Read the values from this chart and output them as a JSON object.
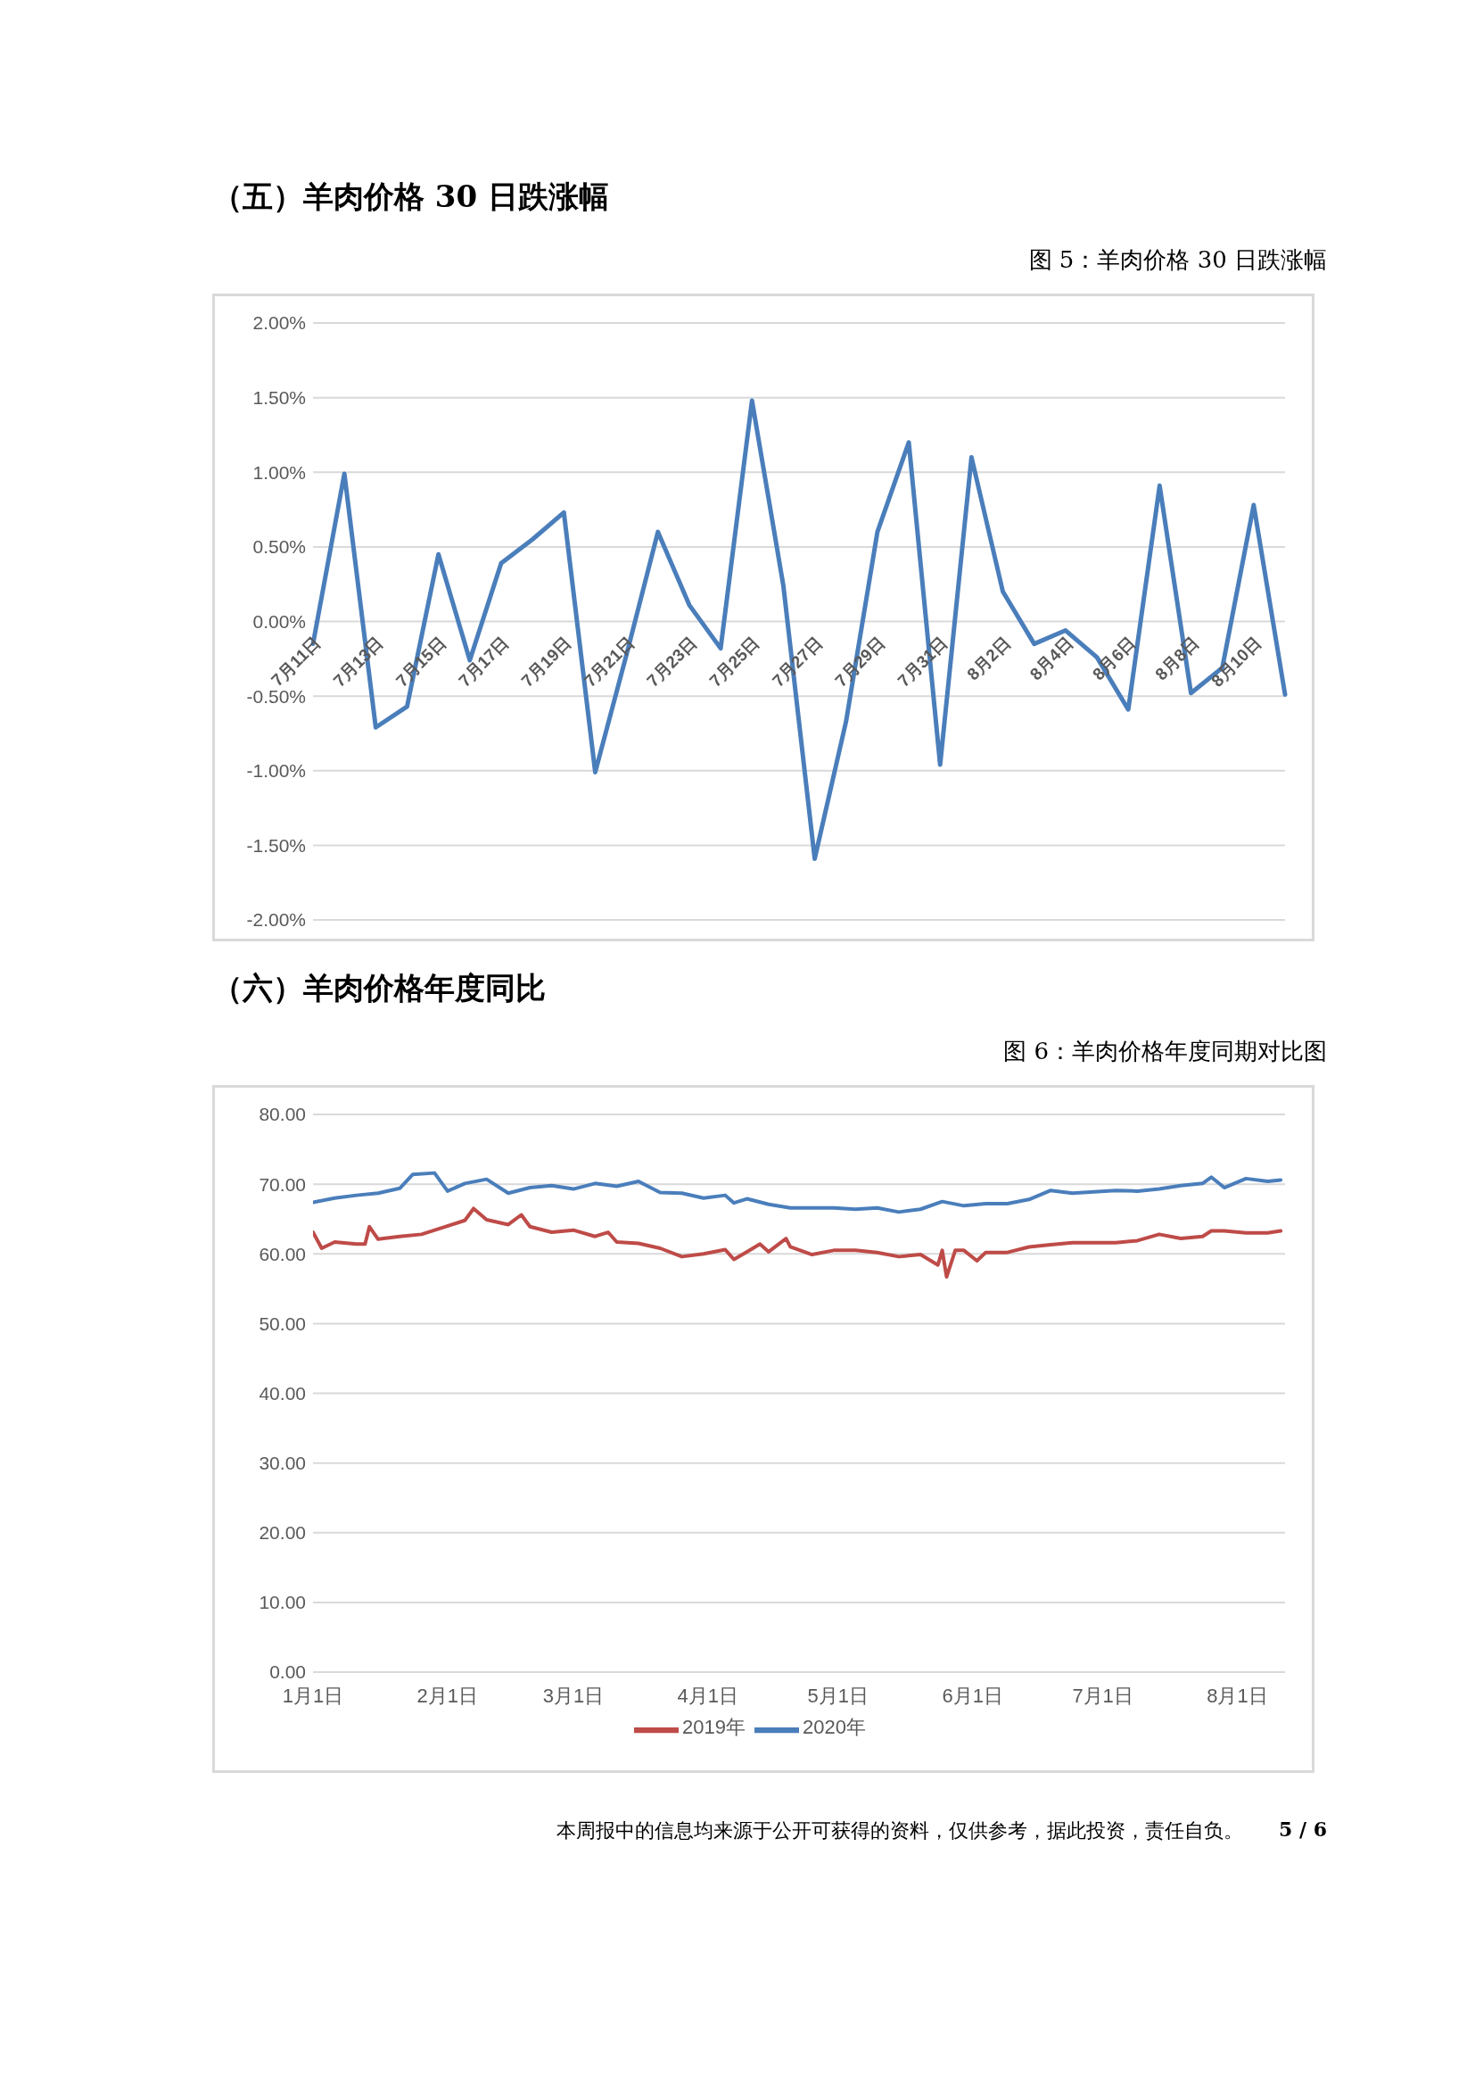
{
  "chart_data": [
    {
      "type": "line",
      "title": "（五）羊肉价格 30 日跌涨幅",
      "subtitle": "图 5：羊肉价格 30 日跌涨幅",
      "categories": [
        "7月11日",
        null,
        "7月13日",
        null,
        "7月15日",
        null,
        "7月17日",
        null,
        "7月19日",
        null,
        "7月21日",
        null,
        "7月23日",
        null,
        "7月25日",
        null,
        "7月27日",
        null,
        "7月29日",
        null,
        "7月31日",
        null,
        "8月2日",
        null,
        "8月4日",
        null,
        "8月6日",
        null,
        "8月8日",
        null,
        "8月10日",
        null
      ],
      "series": [
        {
          "color": "#4a7ebb",
          "values": [
            -0.15,
            0.99,
            -0.71,
            -0.57,
            0.45,
            -0.26,
            0.39,
            0.55,
            0.73,
            -1.01,
            -0.22,
            0.6,
            0.11,
            -0.18,
            1.48,
            0.24,
            -1.59,
            -0.67,
            0.6,
            1.2,
            -0.96,
            1.1,
            0.2,
            -0.15,
            -0.06,
            -0.24,
            -0.59,
            0.91,
            -0.48,
            -0.31,
            0.78,
            -0.49
          ]
        }
      ],
      "ylim": [
        -2,
        2
      ],
      "yticks": [
        {
          "value": -2,
          "label": "-2.00%"
        },
        {
          "value": -1.5,
          "label": "-1.50%"
        },
        {
          "value": -1,
          "label": "-1.00%"
        },
        {
          "value": -0.5,
          "label": "-0.50%"
        },
        {
          "value": 0,
          "label": "0.00%"
        },
        {
          "value": 0.5,
          "label": "0.50%"
        },
        {
          "value": 1,
          "label": "1.00%"
        },
        {
          "value": 1.5,
          "label": "1.50%"
        },
        {
          "value": 2,
          "label": "2.00%"
        }
      ],
      "grid": "y",
      "marker": "none",
      "line_style": "solid"
    },
    {
      "type": "line",
      "title": "（六）羊肉价格年度同比",
      "subtitle": "图 6：羊肉价格年度同期对比图",
      "series": [
        {
          "name": "2020年",
          "color": "#4a7ebb",
          "x": [
            "--01-01",
            "--01-06",
            "--01-11",
            "--01-16",
            "--01-21",
            "--01-24",
            "--01-29",
            "--02-01",
            "--02-05",
            "--02-10",
            "--02-15",
            "--02-20",
            "--02-25",
            "--03-01",
            "--03-06",
            "--03-11",
            "--03-16",
            "--03-21",
            "--03-26",
            "--03-31",
            "--04-05",
            "--04-07",
            "--04-10",
            "--04-15",
            "--04-20",
            "--04-25",
            "--04-30",
            "--05-05",
            "--05-10",
            "--05-15",
            "--05-20",
            "--05-25",
            "--05-30",
            "--06-04",
            "--06-09",
            "--06-14",
            "--06-19",
            "--06-24",
            "--06-29",
            "--07-04",
            "--07-09",
            "--07-14",
            "--07-19",
            "--07-24",
            "--07-26",
            "--07-29",
            "--08-03",
            "--08-08",
            "--08-11"
          ],
          "values": [
            67.4,
            68.0,
            68.4,
            68.7,
            69.4,
            71.4,
            71.6,
            69.0,
            70.1,
            70.7,
            68.7,
            69.5,
            69.8,
            69.3,
            70.1,
            69.7,
            70.4,
            68.8,
            68.7,
            68.0,
            68.4,
            67.3,
            67.9,
            67.1,
            66.6,
            66.6,
            66.6,
            66.4,
            66.6,
            66.0,
            66.4,
            67.5,
            66.9,
            67.2,
            67.2,
            67.8,
            69.1,
            68.7,
            68.9,
            69.1,
            69.0,
            69.3,
            69.8,
            70.1,
            71.0,
            69.5,
            70.8,
            70.4,
            70.6
          ]
        },
        {
          "name": "2019年",
          "color": "#be4b48",
          "x": [
            "--01-01",
            "--01-03",
            "--01-06",
            "--01-11",
            "--01-13",
            "--01-14",
            "--01-16",
            "--01-21",
            "--01-26",
            "--01-31",
            "--02-05",
            "--02-07",
            "--02-10",
            "--02-15",
            "--02-18",
            "--02-20",
            "--02-25",
            "--03-01",
            "--03-06",
            "--03-09",
            "--03-11",
            "--03-16",
            "--03-21",
            "--03-26",
            "--03-31",
            "--04-05",
            "--04-07",
            "--04-10",
            "--04-13",
            "--04-15",
            "--04-19",
            "--04-20",
            "--04-25",
            "--04-30",
            "--05-05",
            "--05-10",
            "--05-15",
            "--05-20",
            "--05-24",
            "--05-25",
            "--05-26",
            "--05-28",
            "--05-30",
            "--06-02",
            "--06-04",
            "--06-09",
            "--06-14",
            "--06-19",
            "--06-24",
            "--06-29",
            "--07-04",
            "--07-09",
            "--07-14",
            "--07-19",
            "--07-24",
            "--07-26",
            "--07-29",
            "--08-03",
            "--08-08",
            "--08-11"
          ],
          "values": [
            63.1,
            60.8,
            61.7,
            61.4,
            61.4,
            63.9,
            62.1,
            62.5,
            62.8,
            63.8,
            64.8,
            66.5,
            64.9,
            64.2,
            65.6,
            63.9,
            63.1,
            63.4,
            62.5,
            63.1,
            61.7,
            61.5,
            60.8,
            59.6,
            60.0,
            60.6,
            59.2,
            60.3,
            61.4,
            60.3,
            62.2,
            61.0,
            59.9,
            60.5,
            60.5,
            60.2,
            59.6,
            59.9,
            58.4,
            60.5,
            56.7,
            60.5,
            60.5,
            59.0,
            60.2,
            60.2,
            61.0,
            61.3,
            61.6,
            61.6,
            61.6,
            61.9,
            62.8,
            62.2,
            62.5,
            63.3,
            63.3,
            63.0,
            63.0,
            63.3
          ]
        }
      ],
      "xlim": [
        "--01-01",
        "--08-12"
      ],
      "xticks": [
        {
          "value": "--01-01",
          "label": "1月1日"
        },
        {
          "value": "--02-01",
          "label": "2月1日"
        },
        {
          "value": "--03-01",
          "label": "3月1日"
        },
        {
          "value": "--04-01",
          "label": "4月1日"
        },
        {
          "value": "--05-01",
          "label": "5月1日"
        },
        {
          "value": "--06-01",
          "label": "6月1日"
        },
        {
          "value": "--07-01",
          "label": "7月1日"
        },
        {
          "value": "--08-01",
          "label": "8月1日"
        }
      ],
      "ylim": [
        0,
        80
      ],
      "yticks": [
        {
          "value": 0,
          "label": "0.00"
        },
        {
          "value": 10,
          "label": "10.00"
        },
        {
          "value": 20,
          "label": "20.00"
        },
        {
          "value": 30,
          "label": "30.00"
        },
        {
          "value": 40,
          "label": "40.00"
        },
        {
          "value": 50,
          "label": "50.00"
        },
        {
          "value": 60,
          "label": "60.00"
        },
        {
          "value": 70,
          "label": "70.00"
        },
        {
          "value": 80,
          "label": "80.00"
        }
      ],
      "grid": "y",
      "legend": "bottom",
      "marker": "none",
      "line_style": "solid",
      "annotations": [
        "本周报中的信息均来源于公开可获得的资料，仅供参考，据此投资，责任自负。",
        "5 / 6"
      ]
    }
  ]
}
